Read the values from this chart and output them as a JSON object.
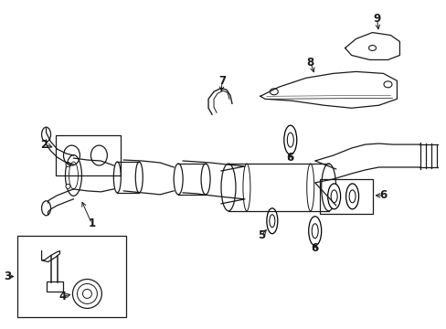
{
  "bg_color": "#ffffff",
  "line_color": "#1a1a1a",
  "fig_width": 4.89,
  "fig_height": 3.6,
  "dpi": 100,
  "lw": 0.9
}
